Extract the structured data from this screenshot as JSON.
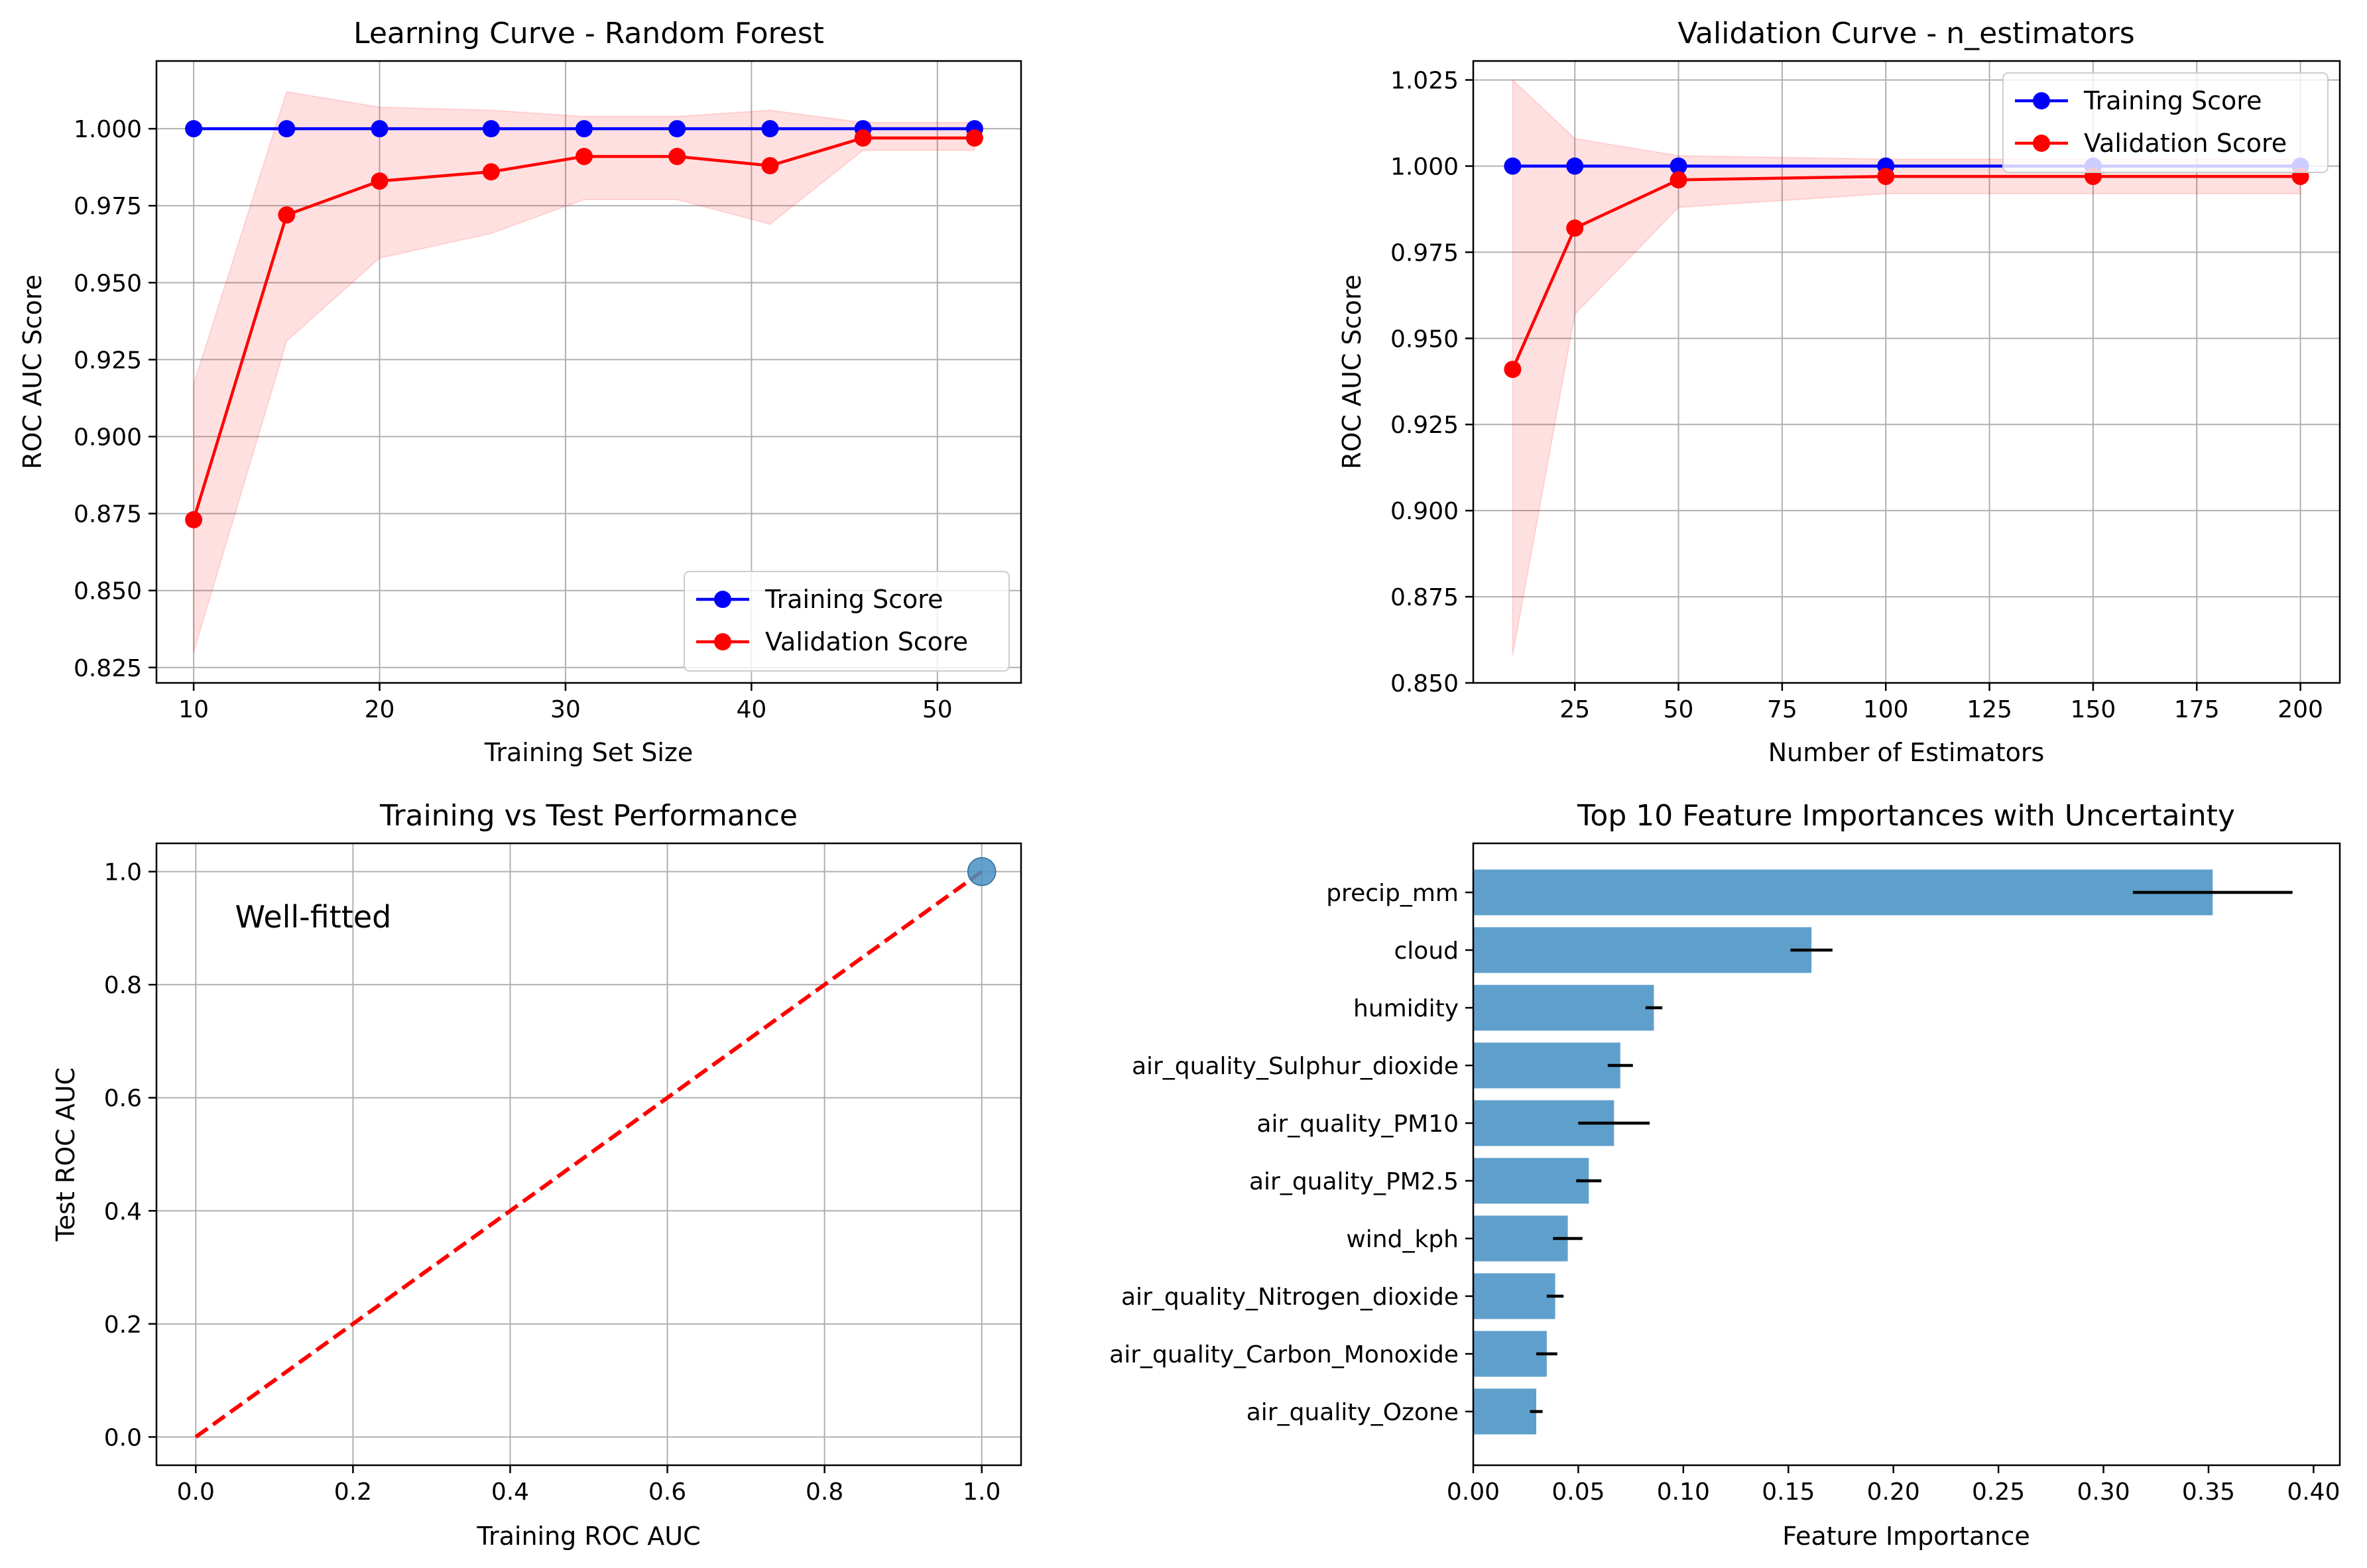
{
  "chart_data": [
    {
      "type": "line",
      "title": "Learning Curve - Random Forest",
      "xlabel": "Training Set Size",
      "ylabel": "ROC AUC Score",
      "xlim": [
        8,
        54.5
      ],
      "ylim": [
        0.82,
        1.022
      ],
      "xticks": [
        10,
        20,
        30,
        40,
        50
      ],
      "yticks": [
        0.825,
        0.85,
        0.875,
        0.9,
        0.925,
        0.95,
        0.975,
        1.0
      ],
      "ytick_decimals": 3,
      "grid": true,
      "legend_position": "lower right",
      "x": [
        10,
        15,
        20,
        26,
        31,
        36,
        41,
        46,
        52
      ],
      "series": [
        {
          "name": "Training Score",
          "color": "#0000ff",
          "values": [
            1.0,
            1.0,
            1.0,
            1.0,
            1.0,
            1.0,
            1.0,
            1.0,
            1.0
          ]
        },
        {
          "name": "Validation Score",
          "color": "#ff0000",
          "values": [
            0.873,
            0.972,
            0.983,
            0.986,
            0.991,
            0.991,
            0.988,
            0.997,
            0.997
          ],
          "band_lower": [
            0.83,
            0.931,
            0.958,
            0.966,
            0.977,
            0.977,
            0.969,
            0.993,
            0.993
          ],
          "band_upper": [
            0.917,
            1.012,
            1.007,
            1.006,
            1.004,
            1.004,
            1.006,
            1.002,
            1.002
          ]
        }
      ]
    },
    {
      "type": "line",
      "title": "Validation Curve - n_estimators",
      "xlabel": "Number of Estimators",
      "ylabel": "ROC AUC Score",
      "xlim": [
        0.5,
        209.5
      ],
      "ylim": [
        0.85,
        1.0305
      ],
      "xticks": [
        25,
        50,
        75,
        100,
        125,
        150,
        175,
        200
      ],
      "yticks": [
        0.85,
        0.875,
        0.9,
        0.925,
        0.95,
        0.975,
        1.0,
        1.025
      ],
      "ytick_decimals": 3,
      "grid": true,
      "legend_position": "upper right",
      "x": [
        10,
        25,
        50,
        100,
        150,
        200
      ],
      "series": [
        {
          "name": "Training Score",
          "color": "#0000ff",
          "values": [
            1.0,
            1.0,
            1.0,
            1.0,
            1.0,
            1.0
          ]
        },
        {
          "name": "Validation Score",
          "color": "#ff0000",
          "values": [
            0.941,
            0.982,
            0.996,
            0.997,
            0.997,
            0.997
          ],
          "band_lower": [
            0.858,
            0.957,
            0.988,
            0.992,
            0.992,
            0.992
          ],
          "band_upper": [
            1.025,
            1.008,
            1.003,
            1.002,
            1.002,
            1.002
          ]
        }
      ]
    },
    {
      "type": "scatter",
      "title": "Training vs Test Performance",
      "xlabel": "Training ROC AUC",
      "ylabel": "Test ROC AUC",
      "xlim": [
        -0.05,
        1.05
      ],
      "ylim": [
        -0.05,
        1.05
      ],
      "xticks": [
        0.0,
        0.2,
        0.4,
        0.6,
        0.8,
        1.0
      ],
      "yticks": [
        0.0,
        0.2,
        0.4,
        0.6,
        0.8,
        1.0
      ],
      "tick_decimals": 1,
      "grid": true,
      "points": [
        {
          "x": 1.0,
          "y": 1.0,
          "color": "#4a90c4"
        }
      ],
      "reference_line": {
        "x": [
          0,
          1
        ],
        "y": [
          0,
          1
        ],
        "color": "#ff0000",
        "style": "dashed"
      },
      "annotation": {
        "text": "Well-fitted",
        "x": 0.05,
        "y": 0.92
      }
    },
    {
      "type": "bar",
      "orientation": "horizontal",
      "title": "Top 10 Feature Importances with Uncertainty",
      "xlabel": "Feature Importance",
      "ylabel": "",
      "xlim": [
        0,
        0.4125
      ],
      "xticks": [
        0.0,
        0.05,
        0.1,
        0.15,
        0.2,
        0.25,
        0.3,
        0.35,
        0.4
      ],
      "tick_decimals": 2,
      "grid": false,
      "bar_color": "#5f9fcc",
      "categories": [
        "precip_mm",
        "cloud",
        "humidity",
        "air_quality_Sulphur_dioxide",
        "air_quality_PM10",
        "air_quality_PM2.5",
        "wind_kph",
        "air_quality_Nitrogen_dioxide",
        "air_quality_Carbon_Monoxide",
        "air_quality_Ozone"
      ],
      "values": [
        0.352,
        0.161,
        0.086,
        0.07,
        0.067,
        0.055,
        0.045,
        0.039,
        0.035,
        0.03
      ],
      "errors": [
        0.038,
        0.01,
        0.004,
        0.006,
        0.017,
        0.006,
        0.007,
        0.004,
        0.005,
        0.003
      ]
    }
  ]
}
